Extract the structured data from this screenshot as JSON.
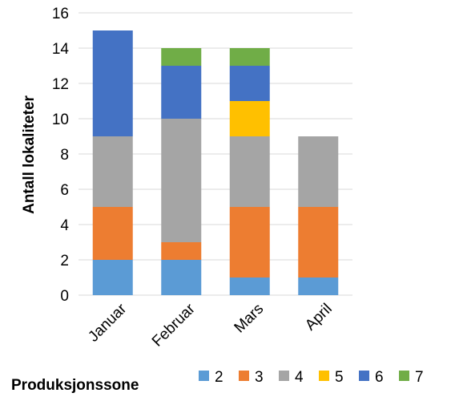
{
  "chart_data": {
    "type": "bar",
    "stacked": true,
    "categories": [
      "Januar",
      "Februar",
      "Mars",
      "April"
    ],
    "series": [
      {
        "name": "2",
        "color": "#5b9bd5",
        "values": [
          2,
          2,
          1,
          1
        ]
      },
      {
        "name": "3",
        "color": "#ed7d31",
        "values": [
          3,
          1,
          4,
          4
        ]
      },
      {
        "name": "4",
        "color": "#a5a5a5",
        "values": [
          4,
          7,
          4,
          4
        ]
      },
      {
        "name": "5",
        "color": "#ffc000",
        "values": [
          0,
          0,
          2,
          0
        ]
      },
      {
        "name": "6",
        "color": "#4472c4",
        "values": [
          6,
          3,
          2,
          0
        ]
      },
      {
        "name": "7",
        "color": "#70ad47",
        "values": [
          0,
          1,
          1,
          0
        ]
      }
    ],
    "title": "",
    "xlabel": "",
    "ylabel": "Antall lokaliteter",
    "ylim": [
      0,
      16
    ],
    "yticks": [
      0,
      2,
      4,
      6,
      8,
      10,
      12,
      14,
      16
    ],
    "grid": true,
    "legend_title": "Produksjonssone",
    "legend_position": "bottom"
  }
}
